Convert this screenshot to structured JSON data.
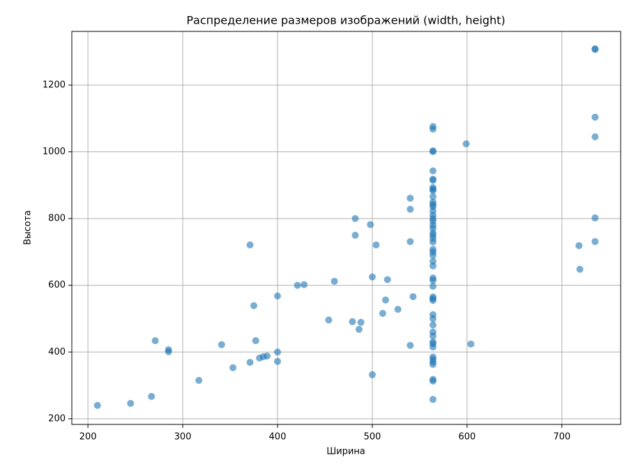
{
  "chart_data": {
    "type": "scatter",
    "title": "Распределение размеров изображений (width, height)",
    "xlabel": "Ширина",
    "ylabel": "Высота",
    "x": [
      210,
      245,
      267,
      271,
      285,
      285,
      317,
      341,
      353,
      371,
      371,
      375,
      377,
      381,
      385,
      389,
      400,
      400,
      400,
      421,
      428,
      454,
      460,
      479,
      482,
      482,
      486,
      488,
      498,
      500,
      500,
      504,
      511,
      514,
      516,
      527,
      540,
      540,
      540,
      540,
      543,
      599,
      604,
      718,
      719,
      735,
      735,
      735,
      735,
      735,
      735,
      564,
      564,
      564,
      564,
      564,
      564,
      564,
      564,
      564,
      564,
      564,
      564,
      564,
      564,
      564,
      564,
      564,
      564,
      564,
      564,
      564,
      564,
      564,
      564,
      564,
      564,
      564,
      564,
      564,
      564,
      564,
      564,
      564,
      564,
      564,
      564,
      564,
      564,
      564,
      564,
      564,
      564,
      564,
      564,
      564,
      564,
      564,
      564,
      564,
      564
    ],
    "values": [
      240,
      246,
      267,
      434,
      401,
      407,
      315,
      422,
      353,
      721,
      369,
      539,
      434,
      382,
      386,
      388,
      400,
      372,
      568,
      600,
      602,
      496,
      612,
      491,
      800,
      750,
      468,
      489,
      782,
      625,
      332,
      721,
      516,
      556,
      617,
      528,
      861,
      828,
      731,
      420,
      566,
      1024,
      424,
      719,
      648,
      1309,
      1307,
      1104,
      1045,
      802,
      731,
      1076,
      1068,
      1003,
      1001,
      943,
      918,
      915,
      893,
      888,
      884,
      866,
      849,
      842,
      836,
      823,
      810,
      800,
      792,
      780,
      771,
      757,
      750,
      740,
      730,
      708,
      700,
      690,
      672,
      658,
      622,
      615,
      597,
      565,
      560,
      555,
      512,
      500,
      481,
      460,
      448,
      430,
      425,
      415,
      385,
      378,
      370,
      363,
      318,
      313,
      258
    ],
    "color": "#1f77b4",
    "alpha": 0.6,
    "xlim": [
      183,
      762
    ],
    "xticks": [
      200,
      300,
      400,
      500,
      600,
      700
    ],
    "ylim": [
      183,
      1361
    ],
    "yticks": [
      200,
      400,
      600,
      800,
      1000,
      1200
    ],
    "grid": true
  }
}
